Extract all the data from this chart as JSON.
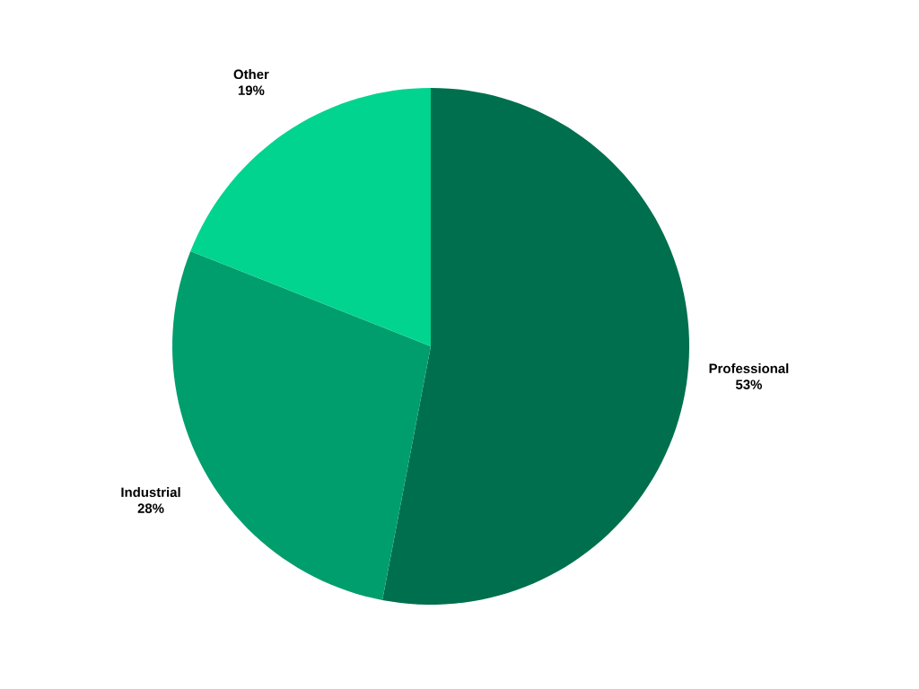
{
  "chart_data": {
    "type": "pie",
    "categories": [
      "Professional",
      "Industrial",
      "Other"
    ],
    "values": [
      53,
      28,
      19
    ],
    "colors": [
      "#006f4e",
      "#009e6d",
      "#00d48e"
    ],
    "value_labels": [
      "53%",
      "28%",
      "19%"
    ]
  }
}
